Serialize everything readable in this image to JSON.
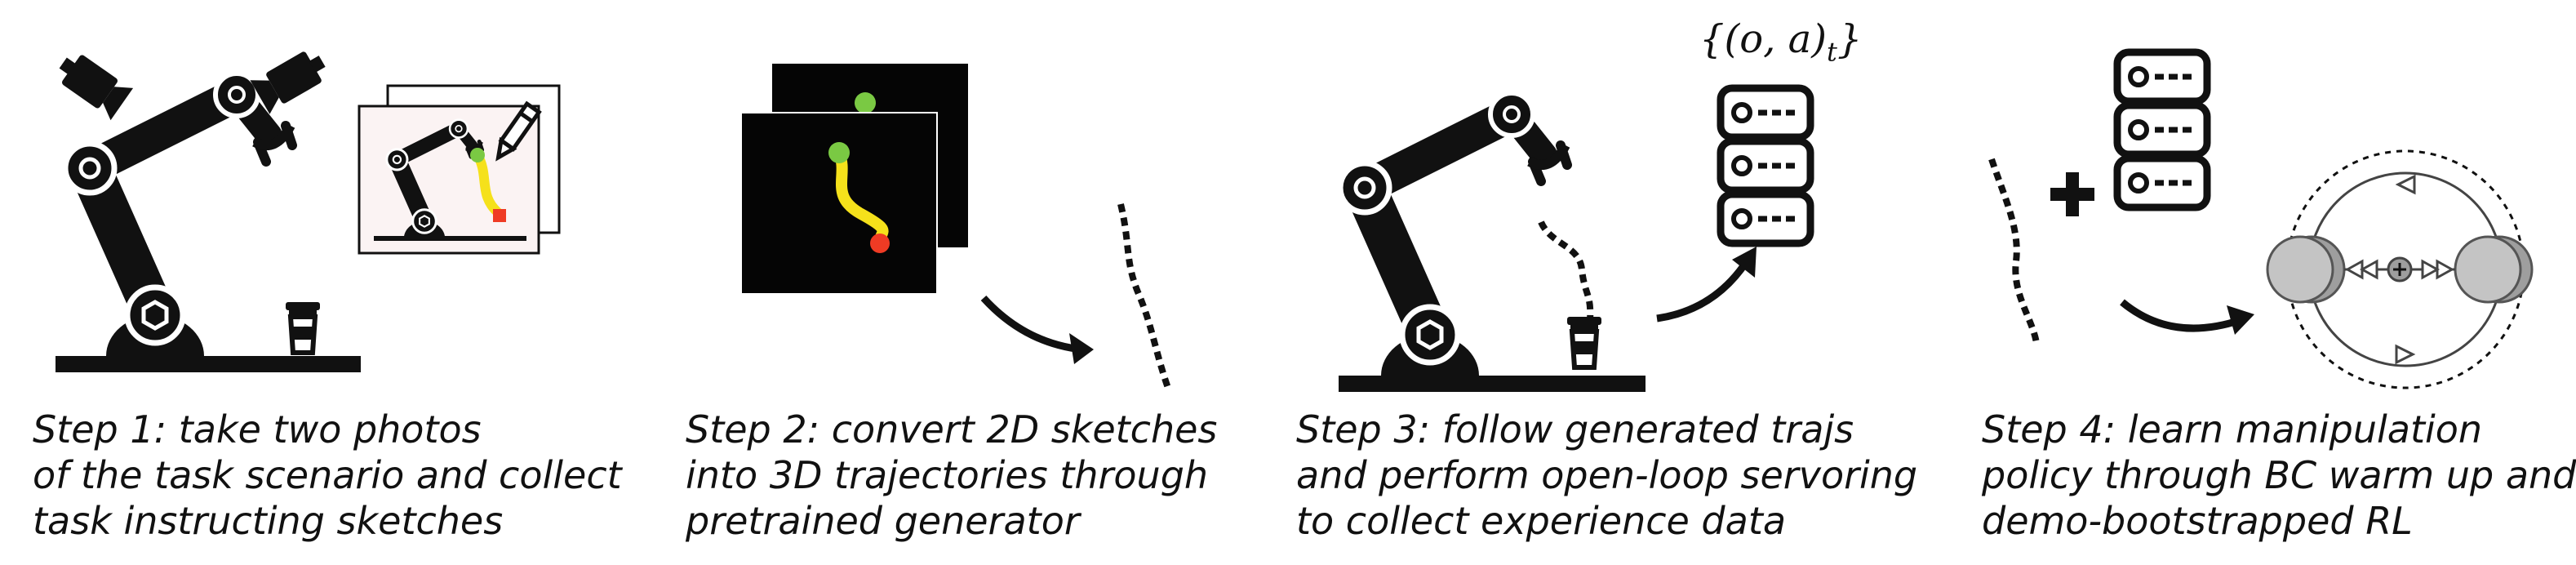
{
  "steps": [
    {
      "id": "step1",
      "caption_lines": [
        "Step 1: take two photos",
        "of the task scenario and collect",
        "task instructing sketches"
      ]
    },
    {
      "id": "step2",
      "caption_lines": [
        "Step 2: convert 2D sketches",
        "into 3D trajectories through",
        "pretrained generator"
      ]
    },
    {
      "id": "step3",
      "caption_lines": [
        "Step 3: follow generated trajs",
        "and perform open-loop servoring",
        "to collect experience data"
      ],
      "buffer_notation": {
        "main": "{(o, a)",
        "sub": "t",
        "close": "}"
      }
    },
    {
      "id": "step4",
      "caption_lines": [
        "Step 4: learn manipulation",
        "policy through BC warm up and",
        "demo-bootstrapped RL"
      ]
    }
  ],
  "icons": [
    "robot-arm-icon",
    "camera-icon",
    "coffee-cup-icon",
    "sketch-photo-icon",
    "pencil-icon",
    "trajectory-icon",
    "arrow-icon",
    "database-icon",
    "plus-icon",
    "rl-loop-icon"
  ],
  "colors": {
    "ink": "#111111",
    "traj_green": "#7ac943",
    "traj_yellow": "#f5e11b",
    "traj_red": "#ef3b24",
    "gray_node": "#bdbdbd"
  }
}
